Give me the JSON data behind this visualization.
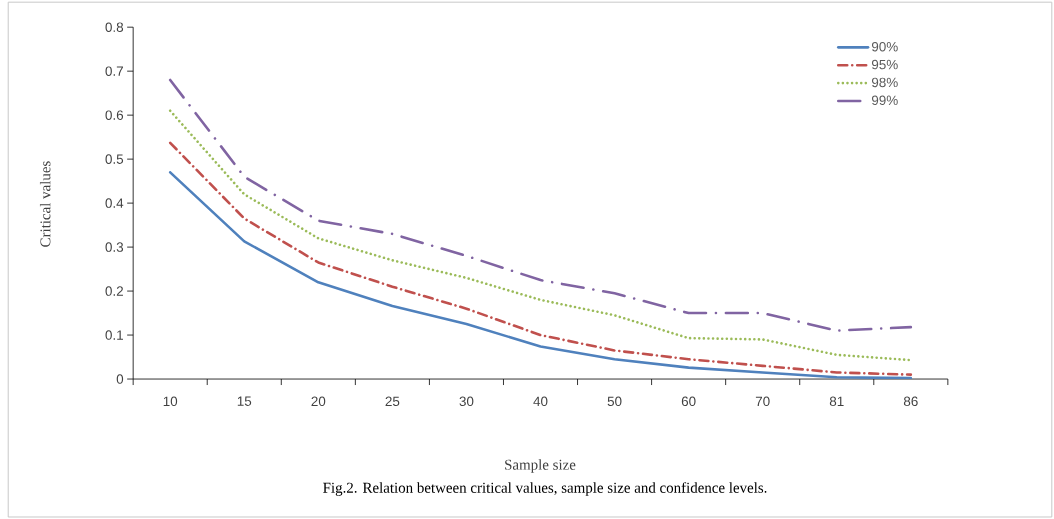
{
  "chart_data": {
    "type": "line",
    "ylabel": "Critical values",
    "xlabel": "Sample size",
    "categories": [
      "10",
      "15",
      "20",
      "25",
      "30",
      "40",
      "50",
      "60",
      "70",
      "81",
      "86"
    ],
    "series": [
      {
        "name": "90%",
        "color": "#4f81bd",
        "line_style": "solid",
        "values": [
          0.47,
          0.313,
          0.22,
          0.166,
          0.125,
          0.074,
          0.045,
          0.026,
          0.015,
          0.004,
          0.002
        ]
      },
      {
        "name": "95%",
        "color": "#c0504d",
        "line_style": "dashdot",
        "values": [
          0.537,
          0.365,
          0.265,
          0.21,
          0.16,
          0.1,
          0.065,
          0.045,
          0.03,
          0.015,
          0.01
        ]
      },
      {
        "name": "98%",
        "color": "#9bbb59",
        "line_style": "dotted",
        "values": [
          0.61,
          0.42,
          0.32,
          0.27,
          0.23,
          0.18,
          0.145,
          0.093,
          0.09,
          0.055,
          0.043
        ]
      },
      {
        "name": "99%",
        "color": "#8064a2",
        "line_style": "longdashdot",
        "values": [
          0.68,
          0.46,
          0.36,
          0.33,
          0.28,
          0.225,
          0.195,
          0.15,
          0.15,
          0.11,
          0.118
        ]
      }
    ],
    "ylim": [
      0,
      0.8
    ],
    "yticks": [
      0,
      0.1,
      0.2,
      0.3,
      0.4,
      0.5,
      0.6,
      0.7,
      0.8
    ],
    "grid": false,
    "legend": "top right",
    "marker": "none",
    "annotations": [
      "Fig.2. Relation between critical values, sample size and confidence levels."
    ]
  }
}
